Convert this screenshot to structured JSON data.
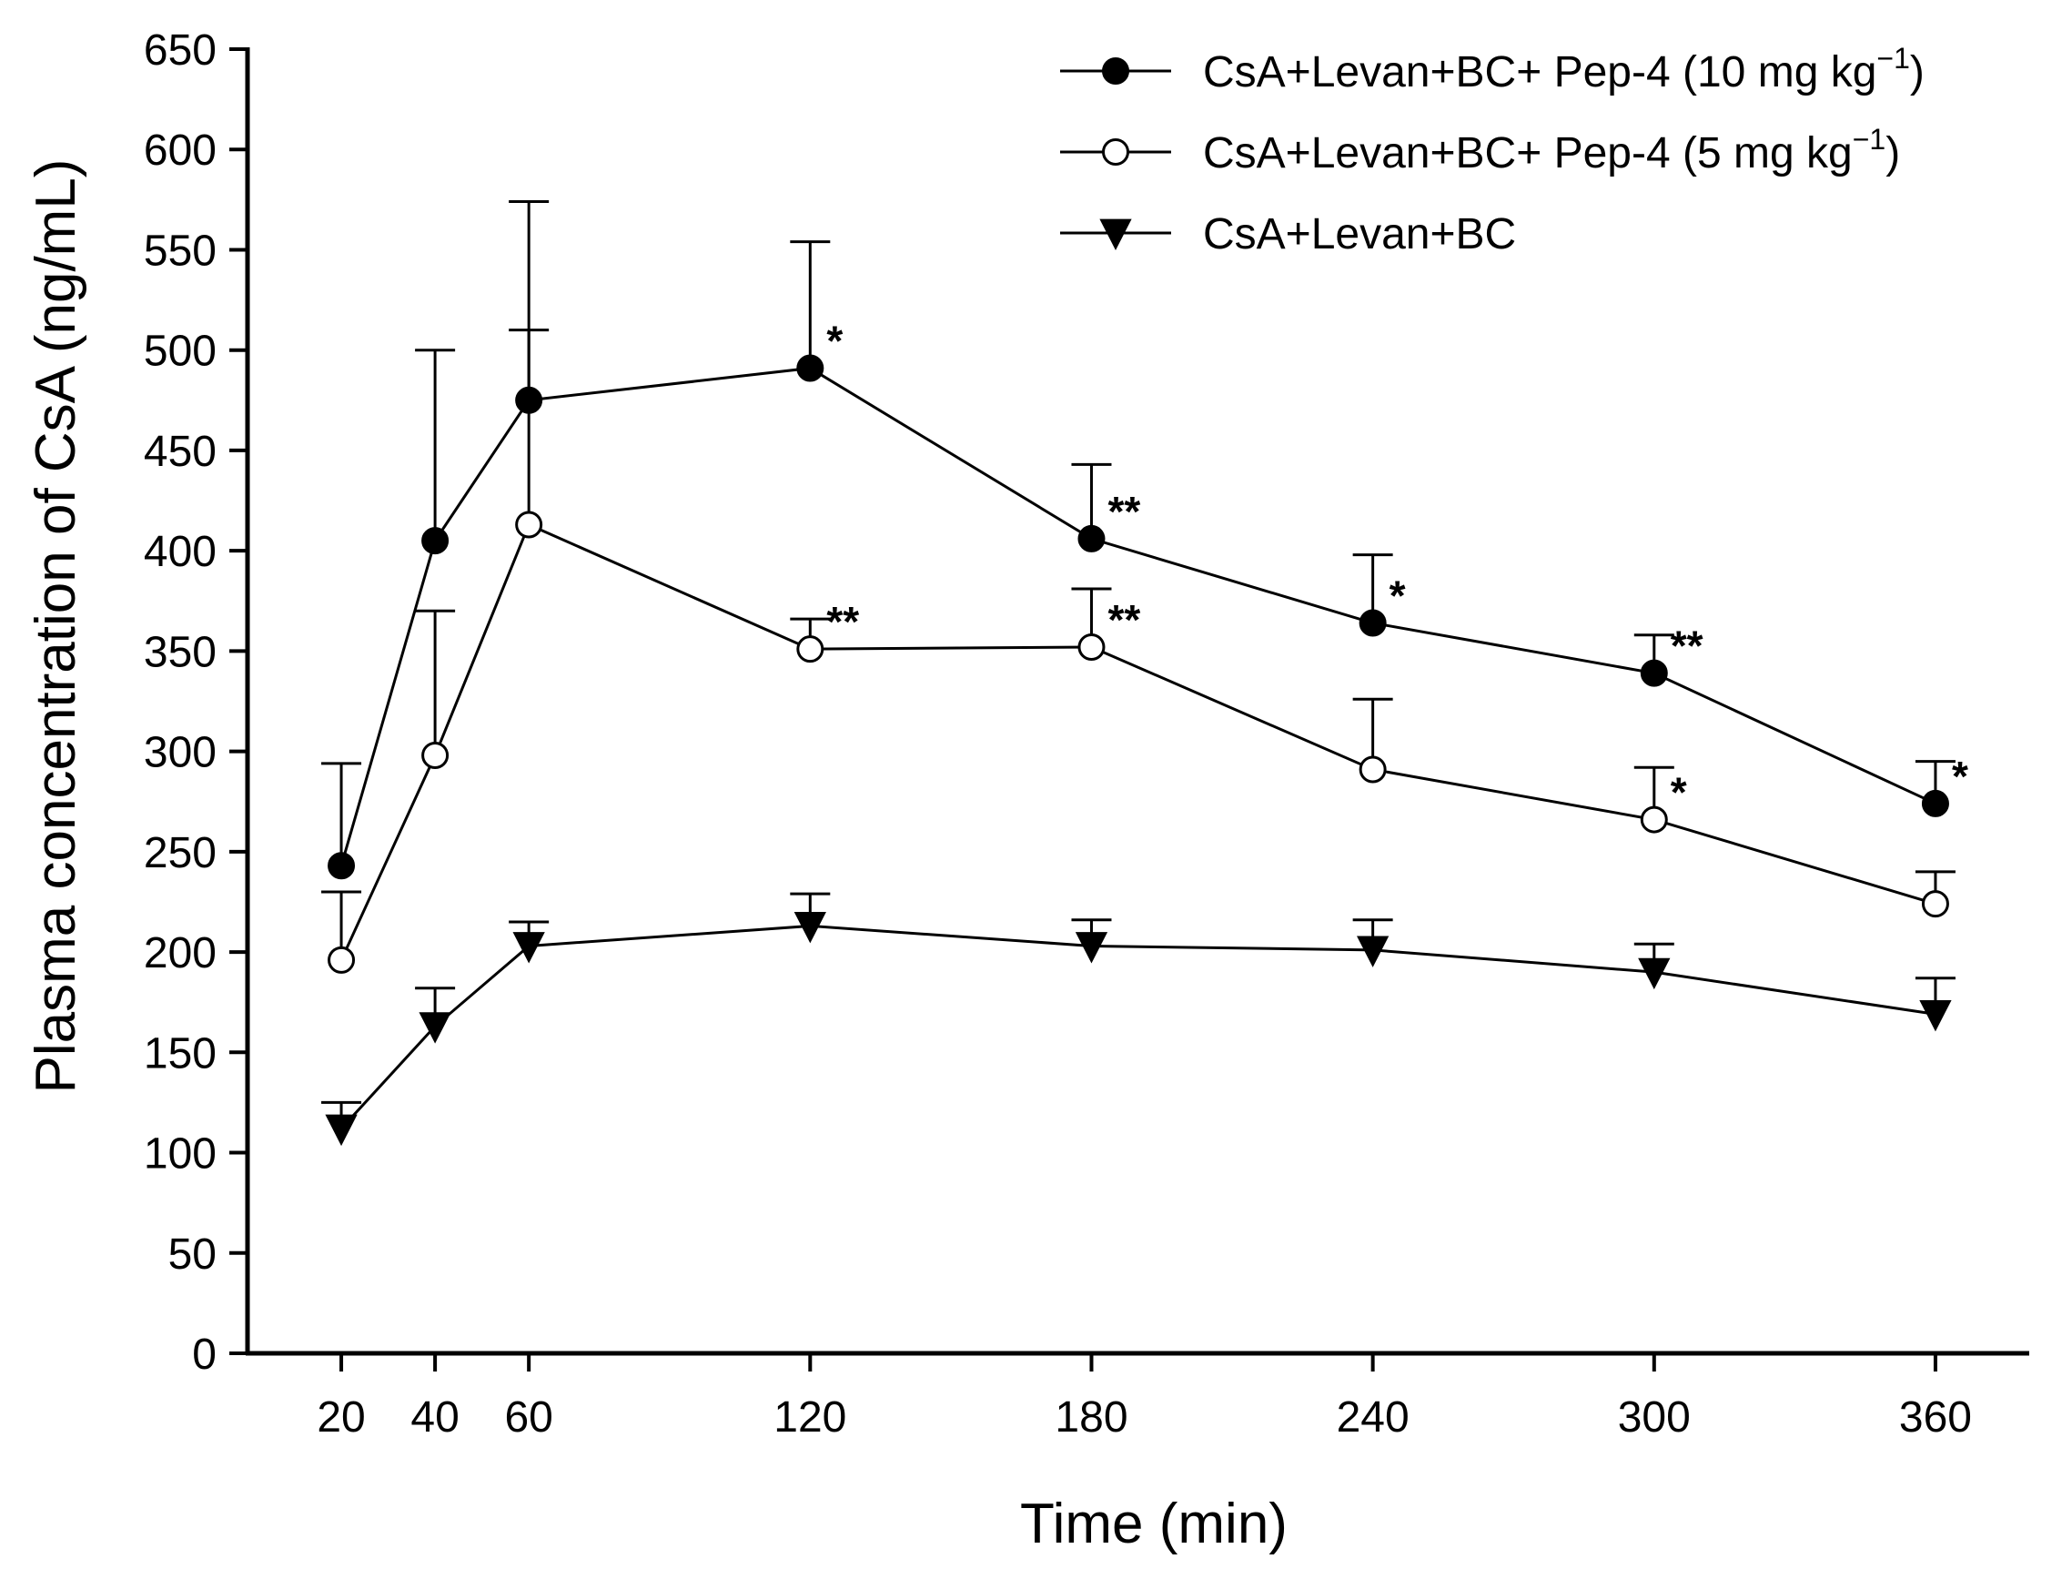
{
  "chart_data": {
    "type": "line",
    "title": "",
    "xlabel": "Time (min)",
    "ylabel": "Plasma concentration of CsA (ng/mL)",
    "x": [
      20,
      40,
      60,
      120,
      180,
      240,
      300,
      360
    ],
    "xlim": [
      0,
      380
    ],
    "ylim": [
      0,
      650
    ],
    "yticks": [
      0,
      50,
      100,
      150,
      200,
      250,
      300,
      350,
      400,
      450,
      500,
      550,
      600,
      650
    ],
    "grid": false,
    "legend_position": "top-right",
    "series": [
      {
        "name": "CsA+Levan+BC+ Pep-4 (10 mg kg",
        "name_superscript": "−1",
        "name_suffix": ")",
        "marker": "filled-circle",
        "values": [
          243,
          405,
          475,
          491,
          406,
          364,
          339,
          274
        ],
        "error_upper": [
          294,
          500,
          574,
          554,
          443,
          398,
          358,
          295
        ],
        "significance": [
          "",
          "",
          "",
          "*",
          "**",
          "*",
          "**",
          "*"
        ]
      },
      {
        "name": "CsA+Levan+BC+ Pep-4 (5 mg kg",
        "name_superscript": "−1",
        "name_suffix": ")",
        "marker": "open-circle",
        "values": [
          196,
          298,
          413,
          351,
          352,
          291,
          266,
          224
        ],
        "error_upper": [
          230,
          370,
          510,
          366,
          381,
          326,
          292,
          240
        ],
        "significance": [
          "",
          "",
          "",
          "**",
          "**",
          "",
          "*",
          ""
        ]
      },
      {
        "name": "CsA+Levan+BC",
        "name_superscript": "",
        "name_suffix": "",
        "marker": "filled-triangle-down",
        "values": [
          112,
          163,
          203,
          213,
          203,
          201,
          190,
          169
        ],
        "error_upper": [
          125,
          182,
          215,
          229,
          216,
          216,
          204,
          187
        ],
        "significance": [
          "",
          "",
          "",
          "",
          "",
          "",
          "",
          ""
        ]
      }
    ]
  }
}
